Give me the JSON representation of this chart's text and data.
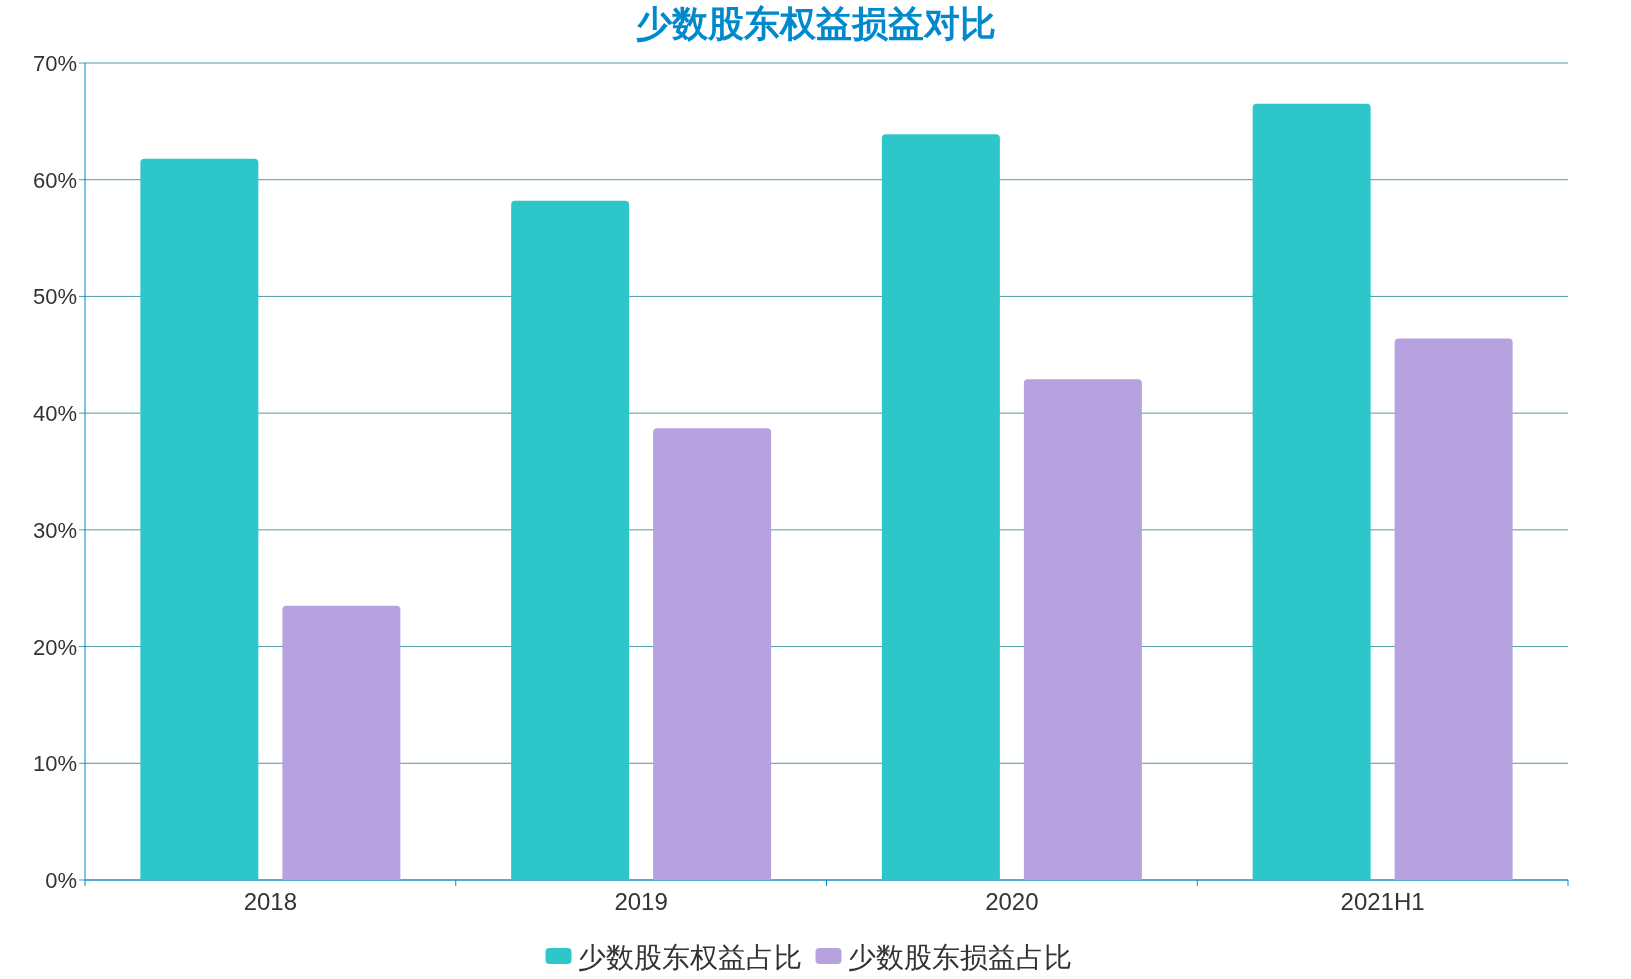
{
  "chart_data": {
    "type": "bar",
    "title": "少数股东权益损益对比",
    "categories": [
      "2018",
      "2019",
      "2020",
      "2021H1"
    ],
    "series": [
      {
        "name": "少数股东权益占比",
        "color": "#2ec7c9",
        "values": [
          61.8,
          58.2,
          63.9,
          66.5
        ]
      },
      {
        "name": "少数股东损益占比",
        "color": "#b6a2de",
        "values": [
          23.5,
          38.7,
          42.9,
          46.4
        ]
      }
    ],
    "ylim": [
      0,
      70
    ],
    "yticks": [
      {
        "value": 0,
        "label": "0%"
      },
      {
        "value": 10,
        "label": "10%"
      },
      {
        "value": 20,
        "label": "20%"
      },
      {
        "value": 30,
        "label": "30%"
      },
      {
        "value": 40,
        "label": "40%"
      },
      {
        "value": 50,
        "label": "50%"
      },
      {
        "value": 60,
        "label": "60%"
      },
      {
        "value": 70,
        "label": "70%"
      }
    ],
    "grid": "y",
    "legend": "bottom"
  }
}
